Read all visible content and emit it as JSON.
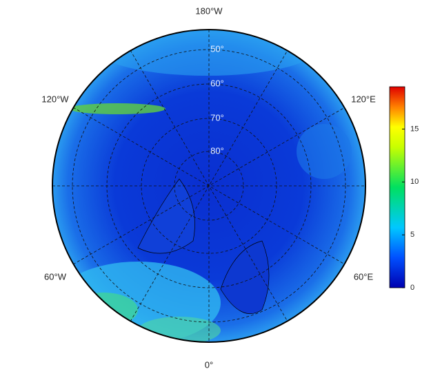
{
  "map": {
    "longitude_labels": [
      "180°W",
      "120°W",
      "120°E",
      "60°W",
      "60°E",
      "0°"
    ],
    "latitude_labels": [
      "80°",
      "70°",
      "60°",
      "50°"
    ]
  },
  "colorbar": {
    "clim": [
      0,
      19
    ],
    "ticks": [
      0,
      5,
      10,
      15
    ]
  }
}
